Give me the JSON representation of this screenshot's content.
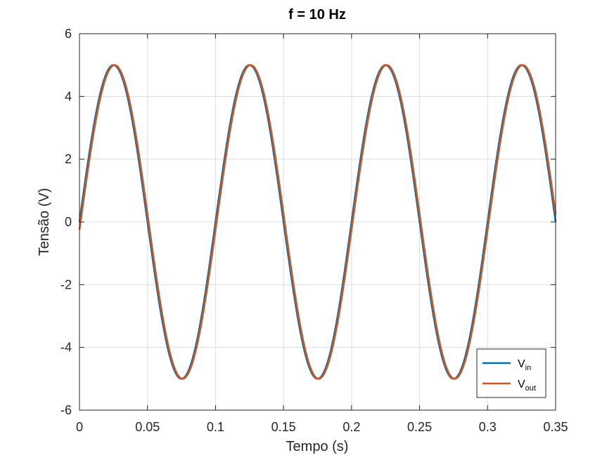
{
  "chart_data": {
    "type": "line",
    "title": "f = 10 Hz",
    "xlabel": "Tempo (s)",
    "ylabel": "Tensão (V)",
    "xlim": [
      0,
      0.35
    ],
    "ylim": [
      -6,
      6
    ],
    "xticks": [
      0,
      0.05,
      0.1,
      0.15,
      0.2,
      0.25,
      0.3,
      0.35
    ],
    "xtick_labels": [
      "0",
      "0.05",
      "0.1",
      "0.15",
      "0.2",
      "0.25",
      "0.3",
      "0.35"
    ],
    "yticks": [
      -6,
      -4,
      -2,
      0,
      2,
      4,
      6
    ],
    "ytick_labels": [
      "-6",
      "-4",
      "-2",
      "0",
      "2",
      "4",
      "6"
    ],
    "grid": true,
    "legend_position": "bottom-right",
    "series": [
      {
        "name_main": "V",
        "name_sub": "in",
        "color": "#0072BD",
        "function": "sine",
        "amplitude": 5,
        "frequency_hz": 10,
        "time_shift_s": 0
      },
      {
        "name_main": "V",
        "name_sub": "out",
        "color": "#D95319",
        "function": "sine",
        "amplitude": 5,
        "frequency_hz": 10,
        "time_shift_s": 0.0008
      }
    ]
  }
}
